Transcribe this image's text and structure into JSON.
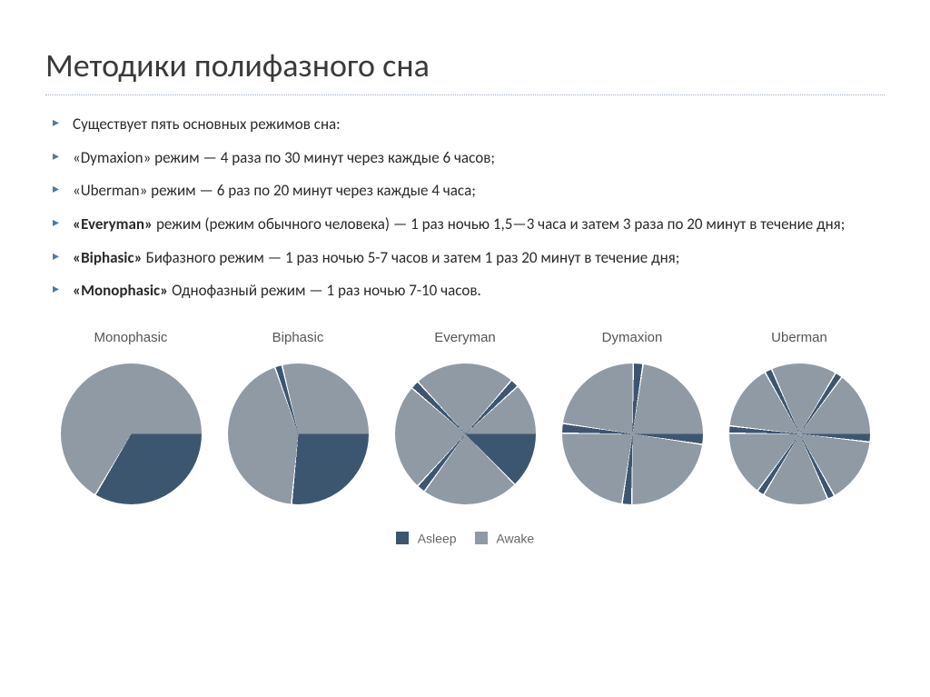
{
  "title": "Методики полифазного сна",
  "bullets": [
    {
      "bold": "",
      "text": "Существует пять основных режимов сна:"
    },
    {
      "bold": "",
      "text": "«Dymaxion» режим — 4 раза по 30 минут через каждые 6 часов;"
    },
    {
      "bold": "",
      "text": "«Uberman» режим — 6 раз по 20 минут через каждые 4 часа;"
    },
    {
      "bold": "«Everyman» ",
      "text": "режим (режим обычного человека) — 1 раз ночью 1,5—3 часа и затем 3 раза по 20 минут в течение дня;"
    },
    {
      "bold": "«Biphasic» ",
      "text": "Бифазного режим — 1 раз ночью 5-7 часов и затем 1 раз 20 минут в течение дня;"
    },
    {
      "bold": "«Monophasic» ",
      "text": "Однофазный режим — 1 раз ночью 7-10 часов."
    }
  ],
  "colors": {
    "asleep": "#3d5670",
    "awake": "#8f9aa5",
    "gap": "#ffffff",
    "background": "#ffffff"
  },
  "pie_gap_deg": 1.2,
  "charts": [
    {
      "label": "Monophasic",
      "segments": [
        {
          "start_deg": 90,
          "end_deg": 210,
          "kind": "asleep"
        },
        {
          "start_deg": 210,
          "end_deg": 450,
          "kind": "awake"
        }
      ]
    },
    {
      "label": "Biphasic",
      "segments": [
        {
          "start_deg": 90,
          "end_deg": 185,
          "kind": "asleep"
        },
        {
          "start_deg": 185,
          "end_deg": 340,
          "kind": "awake"
        },
        {
          "start_deg": 340,
          "end_deg": 346,
          "kind": "asleep"
        },
        {
          "start_deg": 346,
          "end_deg": 450,
          "kind": "awake"
        }
      ]
    },
    {
      "label": "Everyman",
      "segments": [
        {
          "start_deg": 90,
          "end_deg": 135,
          "kind": "asleep"
        },
        {
          "start_deg": 135,
          "end_deg": 215,
          "kind": "awake"
        },
        {
          "start_deg": 215,
          "end_deg": 222,
          "kind": "asleep"
        },
        {
          "start_deg": 222,
          "end_deg": 310,
          "kind": "awake"
        },
        {
          "start_deg": 310,
          "end_deg": 317,
          "kind": "asleep"
        },
        {
          "start_deg": 317,
          "end_deg": 400,
          "kind": "awake"
        },
        {
          "start_deg": 400,
          "end_deg": 407,
          "kind": "asleep"
        },
        {
          "start_deg": 407,
          "end_deg": 450,
          "kind": "awake"
        }
      ]
    },
    {
      "label": "Dymaxion",
      "segments": [
        {
          "start_deg": 90,
          "end_deg": 98,
          "kind": "asleep"
        },
        {
          "start_deg": 98,
          "end_deg": 180,
          "kind": "awake"
        },
        {
          "start_deg": 180,
          "end_deg": 188,
          "kind": "asleep"
        },
        {
          "start_deg": 188,
          "end_deg": 270,
          "kind": "awake"
        },
        {
          "start_deg": 270,
          "end_deg": 278,
          "kind": "asleep"
        },
        {
          "start_deg": 278,
          "end_deg": 360,
          "kind": "awake"
        },
        {
          "start_deg": 360,
          "end_deg": 368,
          "kind": "asleep"
        },
        {
          "start_deg": 368,
          "end_deg": 450,
          "kind": "awake"
        }
      ]
    },
    {
      "label": "Uberman",
      "segments": [
        {
          "start_deg": 90,
          "end_deg": 96,
          "kind": "asleep"
        },
        {
          "start_deg": 96,
          "end_deg": 150,
          "kind": "awake"
        },
        {
          "start_deg": 150,
          "end_deg": 156,
          "kind": "asleep"
        },
        {
          "start_deg": 156,
          "end_deg": 210,
          "kind": "awake"
        },
        {
          "start_deg": 210,
          "end_deg": 216,
          "kind": "asleep"
        },
        {
          "start_deg": 216,
          "end_deg": 270,
          "kind": "awake"
        },
        {
          "start_deg": 270,
          "end_deg": 276,
          "kind": "asleep"
        },
        {
          "start_deg": 276,
          "end_deg": 330,
          "kind": "awake"
        },
        {
          "start_deg": 330,
          "end_deg": 336,
          "kind": "asleep"
        },
        {
          "start_deg": 336,
          "end_deg": 390,
          "kind": "awake"
        },
        {
          "start_deg": 390,
          "end_deg": 396,
          "kind": "asleep"
        },
        {
          "start_deg": 396,
          "end_deg": 450,
          "kind": "awake"
        }
      ]
    }
  ],
  "legend": {
    "asleep_label": "Asleep",
    "awake_label": "Awake"
  },
  "typography": {
    "title_fontsize": 36,
    "bullet_fontsize": 17,
    "chart_label_fontsize": 15,
    "legend_fontsize": 14
  }
}
